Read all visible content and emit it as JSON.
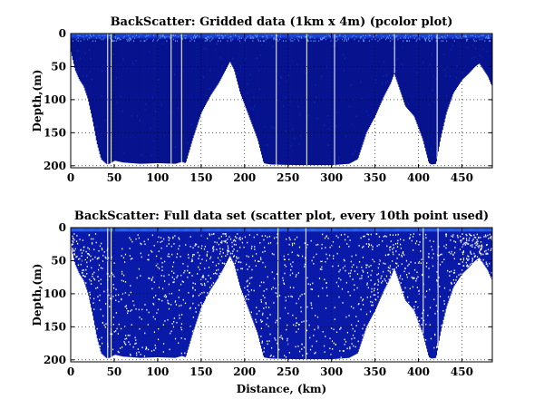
{
  "chart_data": [
    {
      "type": "heatmap",
      "title": "BackScatter: Gridded data (1km x 4m) (pcolor plot)",
      "xlabel": "",
      "ylabel": "Depth,(m)",
      "xlim": [
        0,
        485
      ],
      "ylim": [
        0,
        203
      ],
      "y_reversed": true,
      "grid": true,
      "xticks": [
        0,
        50,
        100,
        150,
        200,
        250,
        300,
        350,
        400,
        450
      ],
      "yticks": [
        0,
        50,
        100,
        150,
        200
      ],
      "profile": {
        "distance_km": [
          0,
          5,
          10,
          15,
          20,
          25,
          30,
          35,
          40,
          42,
          46,
          50,
          60,
          80,
          100,
          120,
          128,
          132,
          140,
          150,
          160,
          170,
          178,
          183,
          188,
          195,
          205,
          215,
          222,
          225,
          230,
          260,
          300,
          320,
          330,
          340,
          350,
          360,
          368,
          372,
          376,
          385,
          395,
          405,
          412,
          415,
          420,
          425,
          432,
          440,
          450,
          458,
          465,
          470,
          475,
          480,
          484
        ],
        "bottom_depth_m": [
          25,
          55,
          70,
          80,
          100,
          130,
          165,
          190,
          196,
          198,
          196,
          192,
          195,
          197,
          196,
          197,
          194,
          196,
          160,
          120,
          95,
          75,
          55,
          42,
          55,
          90,
          125,
          160,
          196,
          197,
          198,
          199,
          199,
          197,
          190,
          150,
          125,
          95,
          75,
          60,
          75,
          110,
          125,
          160,
          196,
          198,
          197,
          160,
          120,
          90,
          70,
          60,
          50,
          45,
          55,
          65,
          78
        ]
      },
      "colormap": [
        "#06138e",
        "#0f29b5",
        "#1c3fd6",
        "#2e62ea",
        "#5d93f1"
      ],
      "value_meaning": "backscatter intensity (surface layer strongest)"
    },
    {
      "type": "scatter",
      "title": "BackScatter: Full data set (scatter plot, every 10th point used)",
      "xlabel": "Distance, (km)",
      "ylabel": "Depth,(m)",
      "xlim": [
        0,
        485
      ],
      "ylim": [
        0,
        203
      ],
      "y_reversed": true,
      "grid": true,
      "xticks": [
        0,
        50,
        100,
        150,
        200,
        250,
        300,
        350,
        400,
        450
      ],
      "yticks": [
        0,
        50,
        100,
        150,
        200
      ],
      "note": "same bottom profile as the gridded panel; samples drawn every 10th point",
      "point_color": "#0a1aa8",
      "gap_color": "#ffffff"
    }
  ]
}
